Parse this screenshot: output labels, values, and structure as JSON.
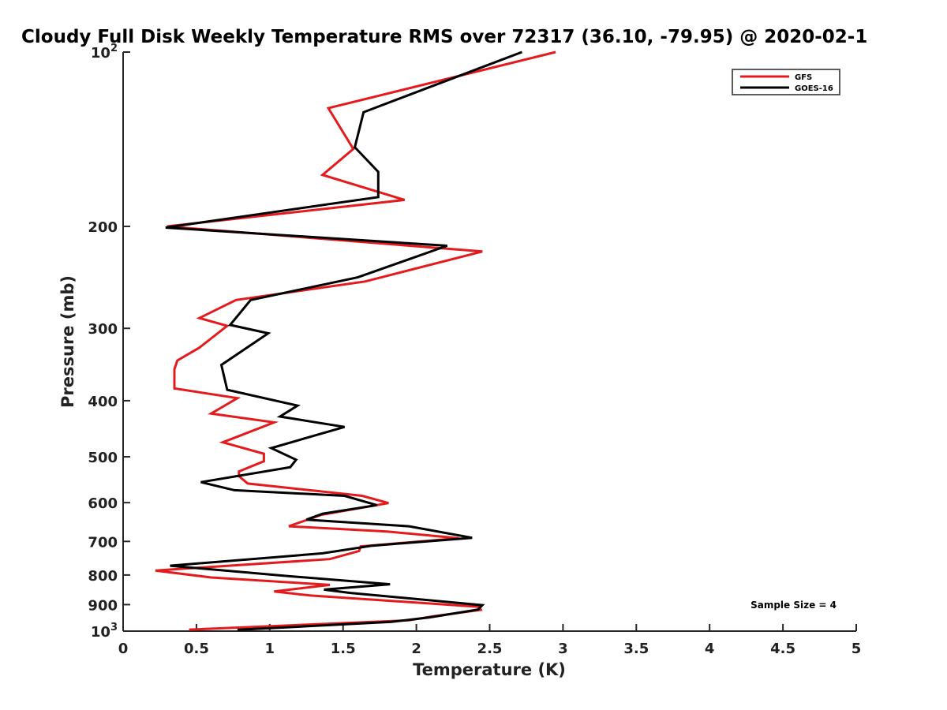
{
  "chart_data": {
    "type": "line",
    "title": "Cloudy Full Disk Weekly Temperature RMS over 72317 (36.10, -79.95) @ 2020-02-1",
    "xlabel": "Temperature (K)",
    "ylabel": "Pressure (mb)",
    "xlim": [
      0,
      5
    ],
    "ylim": [
      100,
      1000
    ],
    "y_scale": "log",
    "y_reversed": true,
    "grid": false,
    "legend_position": "top-right",
    "x_ticks": [
      {
        "value": 0,
        "label": "0"
      },
      {
        "value": 0.5,
        "label": "0.5"
      },
      {
        "value": 1,
        "label": "1"
      },
      {
        "value": 1.5,
        "label": "1.5"
      },
      {
        "value": 2,
        "label": "2"
      },
      {
        "value": 2.5,
        "label": "2.5"
      },
      {
        "value": 3,
        "label": "3"
      },
      {
        "value": 3.5,
        "label": "3.5"
      },
      {
        "value": 4,
        "label": "4"
      },
      {
        "value": 4.5,
        "label": "4.5"
      },
      {
        "value": 5,
        "label": "5"
      }
    ],
    "y_ticks": [
      {
        "value": 100,
        "label": "10",
        "sup": "2"
      },
      {
        "value": 200,
        "label": "200"
      },
      {
        "value": 300,
        "label": "300"
      },
      {
        "value": 400,
        "label": "400"
      },
      {
        "value": 500,
        "label": "500"
      },
      {
        "value": 600,
        "label": "600"
      },
      {
        "value": 700,
        "label": "700"
      },
      {
        "value": 800,
        "label": "800"
      },
      {
        "value": 900,
        "label": "900"
      },
      {
        "value": 1000,
        "label": "10",
        "sup": "3"
      }
    ],
    "annotation": "Sample Size = 4",
    "series": [
      {
        "name": "GFS",
        "color": "#e41a1c",
        "points": [
          [
            2.95,
            100
          ],
          [
            1.4,
            125
          ],
          [
            1.57,
            147
          ],
          [
            1.36,
            163
          ],
          [
            1.92,
            180
          ],
          [
            0.3,
            200
          ],
          [
            2.45,
            221
          ],
          [
            1.65,
            249
          ],
          [
            0.77,
            268
          ],
          [
            0.52,
            288
          ],
          [
            0.71,
            297
          ],
          [
            0.52,
            324
          ],
          [
            0.37,
            341
          ],
          [
            0.35,
            353
          ],
          [
            0.35,
            381
          ],
          [
            0.78,
            396
          ],
          [
            0.6,
            421
          ],
          [
            1.03,
            436
          ],
          [
            0.68,
            472
          ],
          [
            0.96,
            494
          ],
          [
            0.96,
            509
          ],
          [
            0.79,
            530
          ],
          [
            0.79,
            540
          ],
          [
            0.85,
            556
          ],
          [
            1.63,
            584
          ],
          [
            1.81,
            601
          ],
          [
            1.35,
            630
          ],
          [
            1.13,
            659
          ],
          [
            1.8,
            673
          ],
          [
            2.29,
            691
          ],
          [
            1.62,
            714
          ],
          [
            1.61,
            727
          ],
          [
            1.41,
            751
          ],
          [
            0.22,
            786
          ],
          [
            0.6,
            808
          ],
          [
            1.41,
            832
          ],
          [
            1.03,
            854
          ],
          [
            1.28,
            868
          ],
          [
            2.43,
            908
          ],
          [
            2.44,
            919
          ],
          [
            2.11,
            943
          ],
          [
            1.95,
            958
          ],
          [
            0.45,
            994
          ]
        ]
      },
      {
        "name": "GOES-16",
        "color": "#000000",
        "points": [
          [
            2.72,
            100
          ],
          [
            1.64,
            127
          ],
          [
            1.58,
            146
          ],
          [
            1.74,
            161
          ],
          [
            1.74,
            178
          ],
          [
            0.29,
            201
          ],
          [
            2.21,
            216
          ],
          [
            1.6,
            245
          ],
          [
            0.87,
            268
          ],
          [
            0.73,
            296
          ],
          [
            0.99,
            306
          ],
          [
            0.67,
            347
          ],
          [
            0.71,
            383
          ],
          [
            1.19,
            408
          ],
          [
            1.07,
            426
          ],
          [
            1.51,
            444
          ],
          [
            1.01,
            483
          ],
          [
            1.18,
            506
          ],
          [
            1.14,
            521
          ],
          [
            0.53,
            553
          ],
          [
            0.76,
            571
          ],
          [
            1.51,
            584
          ],
          [
            1.73,
            606
          ],
          [
            1.36,
            627
          ],
          [
            1.25,
            642
          ],
          [
            1.95,
            659
          ],
          [
            2.38,
            690
          ],
          [
            1.7,
            712
          ],
          [
            1.36,
            734
          ],
          [
            0.32,
            771
          ],
          [
            1.14,
            804
          ],
          [
            1.82,
            830
          ],
          [
            1.37,
            848
          ],
          [
            1.55,
            859
          ],
          [
            2.45,
            902
          ],
          [
            2.42,
            918
          ],
          [
            2.09,
            947
          ],
          [
            1.83,
            964
          ],
          [
            0.78,
            995
          ]
        ]
      }
    ]
  }
}
